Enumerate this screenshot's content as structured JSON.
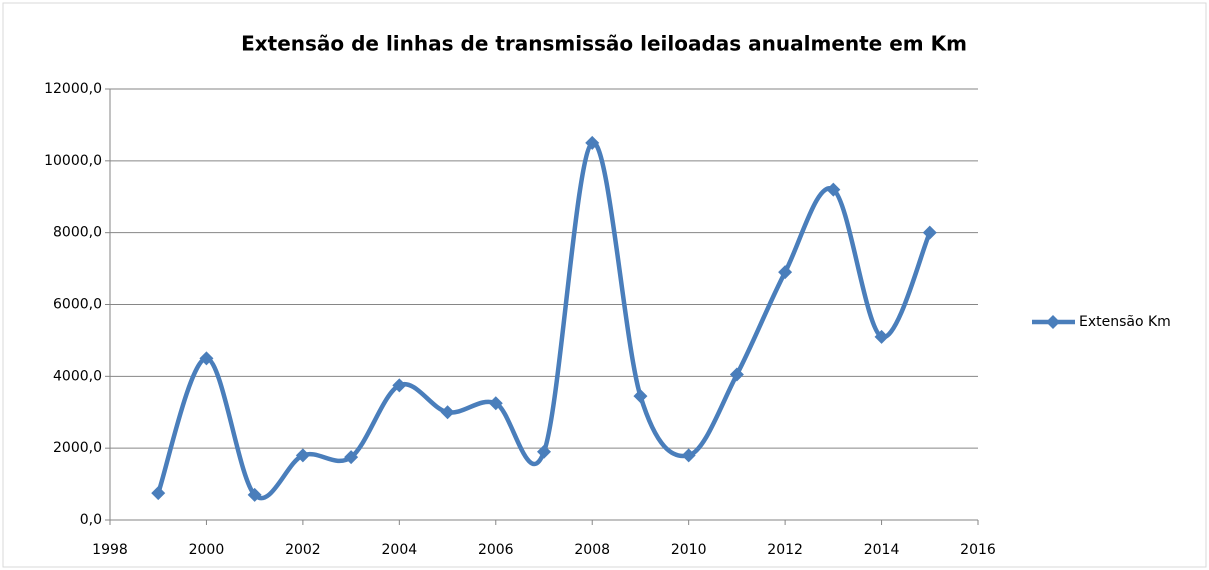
{
  "chart_data": {
    "type": "scatter-smooth",
    "title": "Extensão de linhas de transmissão leiloadas anualmente em Km",
    "x": [
      1999,
      2000,
      2001,
      2002,
      2003,
      2004,
      2005,
      2006,
      2007,
      2008,
      2009,
      2010,
      2011,
      2012,
      2013,
      2014,
      2015
    ],
    "series": [
      {
        "name": "Extensão Km",
        "color": "#4a7ebb",
        "values": [
          750,
          4500,
          700,
          1800,
          1750,
          3750,
          3000,
          3250,
          1900,
          10500,
          3450,
          1800,
          4050,
          6900,
          9200,
          5100,
          8000
        ]
      }
    ],
    "xlim": [
      1998,
      2016
    ],
    "xticks": [
      1998,
      2000,
      2002,
      2004,
      2006,
      2008,
      2010,
      2012,
      2014,
      2016
    ],
    "ylim": [
      0,
      12000
    ],
    "yticks": [
      {
        "value": 0,
        "label": "0,0"
      },
      {
        "value": 2000,
        "label": "2000,0"
      },
      {
        "value": 4000,
        "label": "4000,0"
      },
      {
        "value": 6000,
        "label": "6000,0"
      },
      {
        "value": 8000,
        "label": "8000,0"
      },
      {
        "value": 10000,
        "label": "10000,0"
      },
      {
        "value": 12000,
        "label": "12000,0"
      }
    ],
    "grid": true,
    "legend": "right"
  }
}
